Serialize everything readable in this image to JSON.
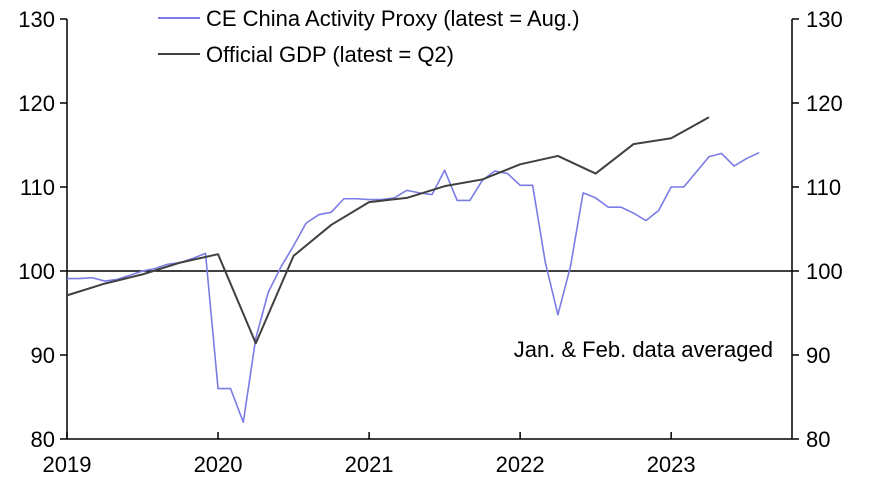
{
  "chart_data": {
    "type": "line",
    "title": "",
    "xlabel": "",
    "ylabel": "",
    "ylim": [
      80,
      130
    ],
    "y_ticks": [
      80,
      90,
      100,
      110,
      120,
      130
    ],
    "x_range": [
      2019.0,
      2023.8
    ],
    "x_ticks": [
      {
        "value": 2019,
        "label": "2019"
      },
      {
        "value": 2020,
        "label": "2020"
      },
      {
        "value": 2021,
        "label": "2021"
      },
      {
        "value": 2022,
        "label": "2022"
      },
      {
        "value": 2023,
        "label": "2023"
      }
    ],
    "reference_line": 100,
    "annotation": "Jan. & Feb. data averaged",
    "series": [
      {
        "name": "CE China Activity Proxy (latest = Aug.)",
        "color": "#7b7be6",
        "x": [
          2019.0,
          2019.083,
          2019.167,
          2019.25,
          2019.333,
          2019.417,
          2019.5,
          2019.583,
          2019.667,
          2019.75,
          2019.833,
          2019.917,
          2020.0,
          2020.083,
          2020.167,
          2020.25,
          2020.333,
          2020.417,
          2020.5,
          2020.583,
          2020.667,
          2020.75,
          2020.833,
          2020.917,
          2021.0,
          2021.083,
          2021.167,
          2021.25,
          2021.333,
          2021.417,
          2021.5,
          2021.583,
          2021.667,
          2021.75,
          2021.833,
          2021.917,
          2022.0,
          2022.083,
          2022.167,
          2022.25,
          2022.333,
          2022.417,
          2022.5,
          2022.583,
          2022.667,
          2022.75,
          2022.833,
          2022.917,
          2023.0,
          2023.083,
          2023.167,
          2023.25,
          2023.333,
          2023.417,
          2023.5,
          2023.583
        ],
        "values": [
          99.1,
          99.1,
          99.2,
          98.8,
          99.0,
          99.5,
          100.0,
          100.3,
          100.8,
          101.0,
          101.5,
          102.1,
          86.0,
          86.0,
          82.0,
          92.0,
          97.5,
          100.5,
          103.0,
          105.7,
          106.7,
          107.0,
          108.6,
          108.6,
          108.5,
          108.5,
          108.7,
          109.6,
          109.3,
          109.1,
          112.0,
          108.4,
          108.4,
          110.8,
          111.9,
          111.6,
          110.2,
          110.2,
          101.0,
          94.8,
          100.5,
          109.3,
          108.7,
          107.6,
          107.6,
          106.9,
          106.0,
          107.2,
          110.0,
          110.0,
          111.8,
          113.6,
          114.0,
          112.5,
          113.4,
          114.1
        ]
      },
      {
        "name": "Official GDP (latest = Q2)",
        "color": "#404040",
        "x": [
          2019.0,
          2019.25,
          2019.5,
          2019.75,
          2020.0,
          2020.25,
          2020.5,
          2020.75,
          2021.0,
          2021.25,
          2021.5,
          2021.75,
          2022.0,
          2022.25,
          2022.5,
          2022.75,
          2023.0,
          2023.25
        ],
        "values": [
          97.1,
          98.5,
          99.6,
          101.0,
          102.0,
          91.4,
          101.8,
          105.5,
          108.2,
          108.7,
          110.1,
          110.9,
          112.7,
          113.7,
          111.6,
          115.1,
          115.8,
          118.3
        ]
      }
    ]
  }
}
